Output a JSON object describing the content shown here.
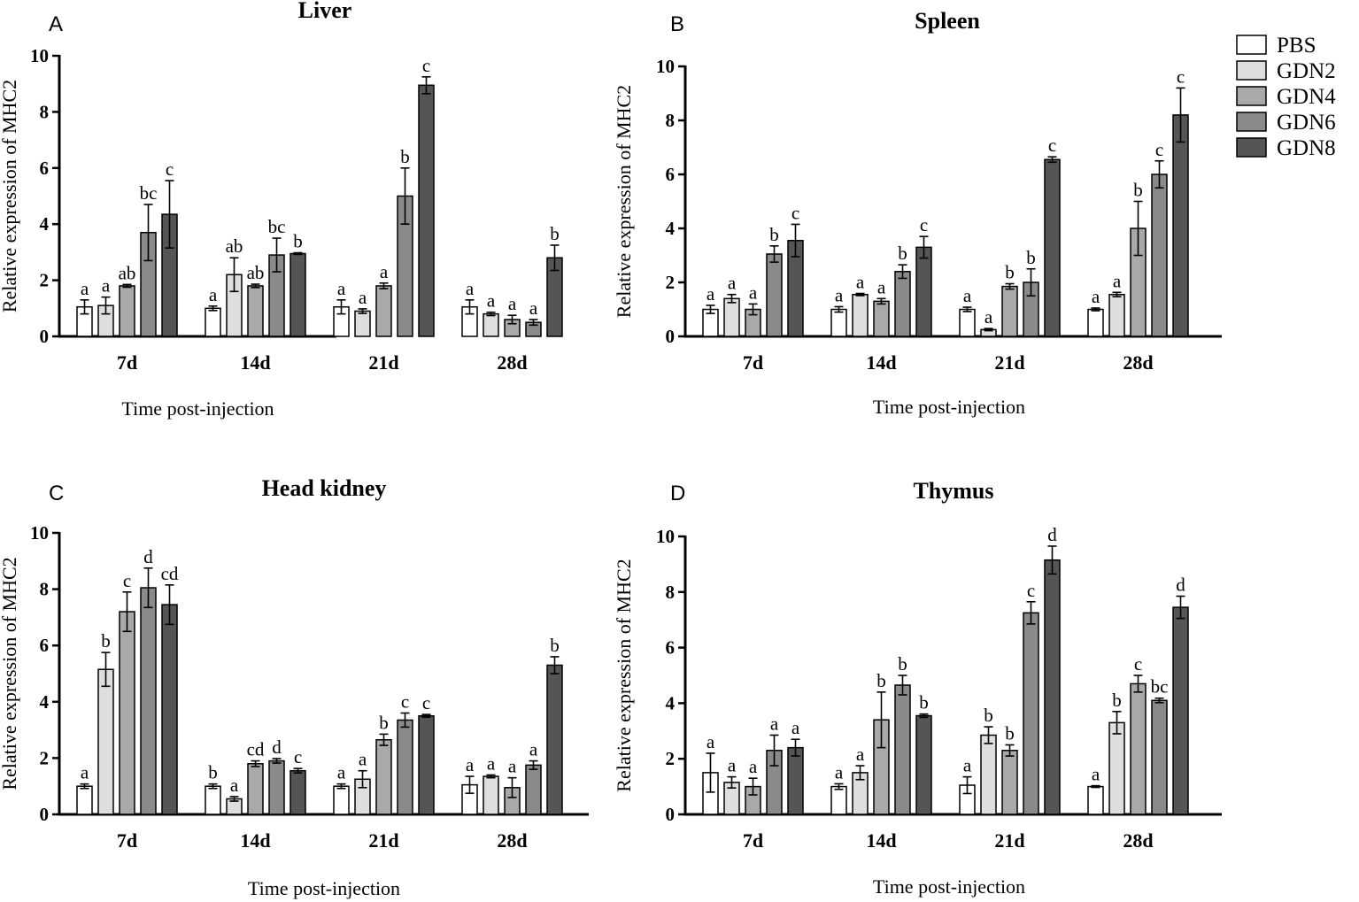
{
  "legend": {
    "items": [
      {
        "label": "PBS",
        "color": "#ffffff"
      },
      {
        "label": "GDN2",
        "color": "#dedede"
      },
      {
        "label": "GDN4",
        "color": "#a9a9a9"
      },
      {
        "label": "GDN6",
        "color": "#8a8a8a"
      },
      {
        "label": "GDN8",
        "color": "#555555"
      }
    ]
  },
  "chart_data": [
    {
      "panel": "A",
      "type": "bar",
      "title": "Liver",
      "xlabel": "Time post-injection",
      "ylabel": "Relative expression of MHC2",
      "ylim": [
        0,
        10
      ],
      "yticks": [
        "0",
        "2",
        "4",
        "6",
        "8",
        "10"
      ],
      "categories": [
        "7d",
        "14d",
        "21d",
        "28d"
      ],
      "series": [
        {
          "name": "PBS",
          "values": [
            1.05,
            1.0,
            1.05,
            1.05
          ],
          "errors": [
            0.25,
            0.08,
            0.25,
            0.25
          ],
          "labels": [
            "a",
            "a",
            "a",
            "a"
          ]
        },
        {
          "name": "GDN2",
          "values": [
            1.1,
            2.2,
            0.9,
            0.8
          ],
          "errors": [
            0.3,
            0.6,
            0.08,
            0.06
          ],
          "labels": [
            "a",
            "ab",
            "a",
            "a"
          ]
        },
        {
          "name": "GDN4",
          "values": [
            1.8,
            1.8,
            1.8,
            0.6
          ],
          "errors": [
            0.05,
            0.06,
            0.1,
            0.15
          ],
          "labels": [
            "ab",
            "ab",
            "a",
            "a"
          ]
        },
        {
          "name": "GDN6",
          "values": [
            3.7,
            2.9,
            5.0,
            0.5
          ],
          "errors": [
            1.0,
            0.6,
            1.0,
            0.1
          ],
          "labels": [
            "bc",
            "bc",
            "b",
            "a"
          ]
        },
        {
          "name": "GDN8",
          "values": [
            4.35,
            2.95,
            8.95,
            2.8
          ],
          "errors": [
            1.2,
            0.03,
            0.3,
            0.45
          ],
          "labels": [
            "c",
            "b",
            "c",
            "b"
          ]
        }
      ]
    },
    {
      "panel": "B",
      "type": "bar",
      "title": "Spleen",
      "xlabel": "Time post-injection",
      "ylabel": "Relative expression of MHC2",
      "ylim": [
        0,
        10
      ],
      "yticks": [
        "0",
        "2",
        "4",
        "6",
        "8",
        "10"
      ],
      "categories": [
        "7d",
        "14d",
        "21d",
        "28d"
      ],
      "series": [
        {
          "name": "PBS",
          "values": [
            1.0,
            1.0,
            1.0,
            1.0
          ],
          "errors": [
            0.15,
            0.1,
            0.08,
            0.05
          ],
          "labels": [
            "a",
            "a",
            "a",
            "a"
          ]
        },
        {
          "name": "GDN2",
          "values": [
            1.4,
            1.55,
            0.25,
            1.55
          ],
          "errors": [
            0.15,
            0.04,
            0.04,
            0.08
          ],
          "labels": [
            "a",
            "a",
            "a",
            "a"
          ]
        },
        {
          "name": "GDN4",
          "values": [
            1.0,
            1.3,
            1.85,
            4.0
          ],
          "errors": [
            0.2,
            0.1,
            0.1,
            1.0
          ],
          "labels": [
            "a",
            "a",
            "b",
            "b"
          ]
        },
        {
          "name": "GDN6",
          "values": [
            3.05,
            2.4,
            2.0,
            6.0
          ],
          "errors": [
            0.3,
            0.25,
            0.5,
            0.5
          ],
          "labels": [
            "b",
            "b",
            "b",
            "c"
          ]
        },
        {
          "name": "GDN8",
          "values": [
            3.55,
            3.3,
            6.55,
            8.2
          ],
          "errors": [
            0.6,
            0.4,
            0.1,
            1.0
          ],
          "labels": [
            "c",
            "c",
            "c",
            "c"
          ]
        }
      ]
    },
    {
      "panel": "C",
      "type": "bar",
      "title": "Head kidney",
      "xlabel": "Time post-injection",
      "ylabel": "Relative expression of MHC2",
      "ylim": [
        0,
        10
      ],
      "yticks": [
        "0",
        "2",
        "4",
        "6",
        "8",
        "10"
      ],
      "categories": [
        "7d",
        "14d",
        "21d",
        "28d"
      ],
      "series": [
        {
          "name": "PBS",
          "values": [
            1.0,
            1.0,
            1.0,
            1.05
          ],
          "errors": [
            0.08,
            0.08,
            0.08,
            0.3
          ],
          "labels": [
            "a",
            "b",
            "a",
            "a"
          ]
        },
        {
          "name": "GDN2",
          "values": [
            5.15,
            0.55,
            1.25,
            1.35
          ],
          "errors": [
            0.6,
            0.08,
            0.3,
            0.05
          ],
          "labels": [
            "b",
            "a",
            "a",
            "a"
          ]
        },
        {
          "name": "GDN4",
          "values": [
            7.2,
            1.8,
            2.65,
            0.95
          ],
          "errors": [
            0.7,
            0.1,
            0.2,
            0.35
          ],
          "labels": [
            "c",
            "cd",
            "b",
            "a"
          ]
        },
        {
          "name": "GDN6",
          "values": [
            8.05,
            1.9,
            3.35,
            1.75
          ],
          "errors": [
            0.7,
            0.08,
            0.25,
            0.15
          ],
          "labels": [
            "d",
            "d",
            "c",
            "a"
          ]
        },
        {
          "name": "GDN8",
          "values": [
            7.45,
            1.55,
            3.5,
            5.3
          ],
          "errors": [
            0.7,
            0.08,
            0.05,
            0.3
          ],
          "labels": [
            "cd",
            "c",
            "c",
            "b"
          ]
        }
      ]
    },
    {
      "panel": "D",
      "type": "bar",
      "title": "Thymus",
      "xlabel": "Time post-injection",
      "ylabel": "Relative expression of MHC2",
      "ylim": [
        0,
        10
      ],
      "yticks": [
        "0",
        "2",
        "4",
        "6",
        "8",
        "10"
      ],
      "categories": [
        "7d",
        "14d",
        "21d",
        "28d"
      ],
      "series": [
        {
          "name": "PBS",
          "values": [
            1.5,
            1.0,
            1.05,
            1.0
          ],
          "errors": [
            0.7,
            0.1,
            0.3,
            0.03
          ],
          "labels": [
            "a",
            "a",
            "a",
            "a"
          ]
        },
        {
          "name": "GDN2",
          "values": [
            1.15,
            1.5,
            2.85,
            3.3
          ],
          "errors": [
            0.2,
            0.25,
            0.3,
            0.4
          ],
          "labels": [
            "a",
            "a",
            "b",
            "b"
          ]
        },
        {
          "name": "GDN4",
          "values": [
            1.0,
            3.4,
            2.3,
            4.7
          ],
          "errors": [
            0.3,
            1.0,
            0.2,
            0.3
          ],
          "labels": [
            "a",
            "b",
            "b",
            "c"
          ]
        },
        {
          "name": "GDN6",
          "values": [
            2.3,
            4.65,
            7.25,
            4.1
          ],
          "errors": [
            0.55,
            0.35,
            0.4,
            0.08
          ],
          "labels": [
            "a",
            "b",
            "c",
            "bc"
          ]
        },
        {
          "name": "GDN8",
          "values": [
            2.4,
            3.55,
            9.15,
            7.45
          ],
          "errors": [
            0.3,
            0.06,
            0.5,
            0.4
          ],
          "labels": [
            "a",
            "b",
            "d",
            "d"
          ]
        }
      ]
    }
  ]
}
